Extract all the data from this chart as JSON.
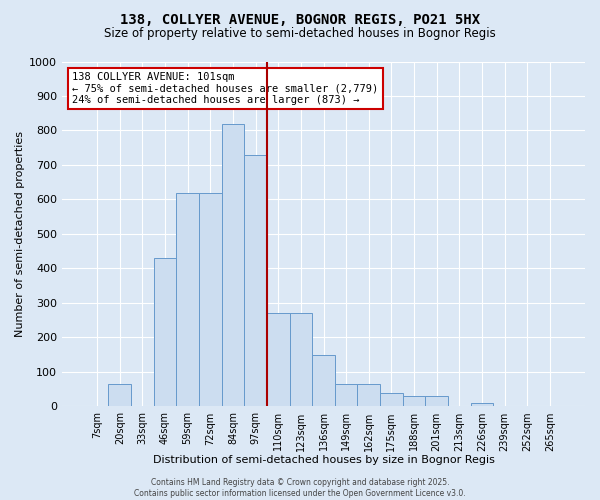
{
  "title_line1": "138, COLLYER AVENUE, BOGNOR REGIS, PO21 5HX",
  "title_line2": "Size of property relative to semi-detached houses in Bognor Regis",
  "xlabel": "Distribution of semi-detached houses by size in Bognor Regis",
  "ylabel": "Number of semi-detached properties",
  "categories": [
    "7sqm",
    "20sqm",
    "33sqm",
    "46sqm",
    "59sqm",
    "72sqm",
    "84sqm",
    "97sqm",
    "110sqm",
    "123sqm",
    "136sqm",
    "149sqm",
    "162sqm",
    "175sqm",
    "188sqm",
    "201sqm",
    "213sqm",
    "226sqm",
    "239sqm",
    "252sqm",
    "265sqm"
  ],
  "values": [
    0,
    65,
    0,
    430,
    620,
    620,
    820,
    730,
    270,
    270,
    150,
    65,
    65,
    40,
    30,
    30,
    0,
    10,
    0,
    0,
    0
  ],
  "bar_color": "#ccddf0",
  "bar_edge_color": "#6699cc",
  "vline_x_idx": 7,
  "vline_color": "#aa0000",
  "annotation_line1": "138 COLLYER AVENUE: 101sqm",
  "annotation_line2": "← 75% of semi-detached houses are smaller (2,779)",
  "annotation_line3": "24% of semi-detached houses are larger (873) →",
  "annotation_box_facecolor": "#ffffff",
  "annotation_box_edgecolor": "#cc0000",
  "ylim": [
    0,
    1000
  ],
  "yticks": [
    0,
    100,
    200,
    300,
    400,
    500,
    600,
    700,
    800,
    900,
    1000
  ],
  "footer_line1": "Contains HM Land Registry data © Crown copyright and database right 2025.",
  "footer_line2": "Contains public sector information licensed under the Open Government Licence v3.0.",
  "bg_color": "#dce8f5",
  "plot_bg_color": "#dce8f5",
  "grid_color": "#ffffff",
  "title1_fontsize": 10,
  "title2_fontsize": 8.5
}
